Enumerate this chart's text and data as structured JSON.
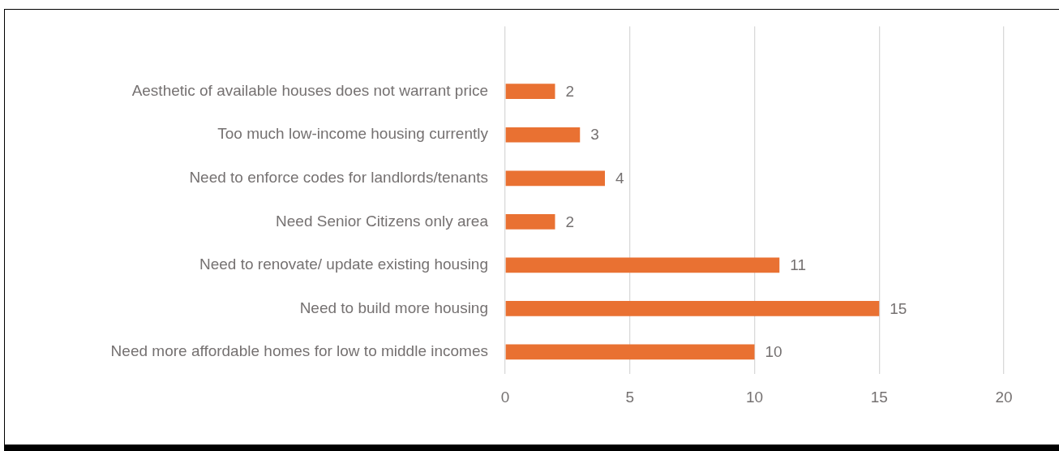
{
  "chart_data": {
    "type": "bar",
    "orientation": "horizontal",
    "categories": [
      null,
      "Aesthetic of available houses does not warrant price",
      "Too much low-income housing currently",
      "Need to enforce codes for landlords/tenants",
      "Need Senior Citizens only area",
      "Need to renovate/ update existing housing",
      "Need to build more housing",
      "Need more affordable homes for low to middle incomes"
    ],
    "values": [
      null,
      2,
      3,
      4,
      2,
      11,
      15,
      10
    ],
    "color": "#e97132",
    "xlim": [
      0,
      20
    ],
    "xticks": [
      0,
      5,
      10,
      15,
      20
    ],
    "grid": "x",
    "data_labels": true
  }
}
